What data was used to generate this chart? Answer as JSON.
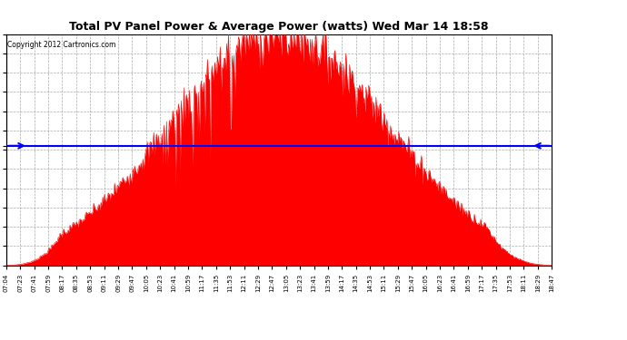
{
  "title": "Total PV Panel Power & Average Power (watts) Wed Mar 14 18:58",
  "copyright": "Copyright 2012 Cartronics.com",
  "average_power": 1734.99,
  "y_max": 3359.1,
  "y_min": 0.0,
  "y_ticks": [
    0.0,
    279.9,
    559.9,
    839.8,
    1119.7,
    1399.6,
    1679.6,
    1959.5,
    2239.4,
    2519.4,
    2799.3,
    3079.2,
    3359.1
  ],
  "background_color": "#ffffff",
  "fill_color": "#ff0000",
  "avg_line_color": "#0000ff",
  "grid_color": "#aaaaaa",
  "x_labels": [
    "07:04",
    "07:23",
    "07:41",
    "07:59",
    "08:17",
    "08:35",
    "08:53",
    "09:11",
    "09:29",
    "09:47",
    "10:05",
    "10:23",
    "10:41",
    "10:59",
    "11:17",
    "11:35",
    "11:53",
    "12:11",
    "12:29",
    "12:47",
    "13:05",
    "13:23",
    "13:41",
    "13:59",
    "14:17",
    "14:35",
    "14:53",
    "15:11",
    "15:29",
    "15:47",
    "16:05",
    "16:23",
    "16:41",
    "16:59",
    "17:17",
    "17:35",
    "17:53",
    "18:11",
    "18:29",
    "18:47"
  ],
  "num_points": 600
}
